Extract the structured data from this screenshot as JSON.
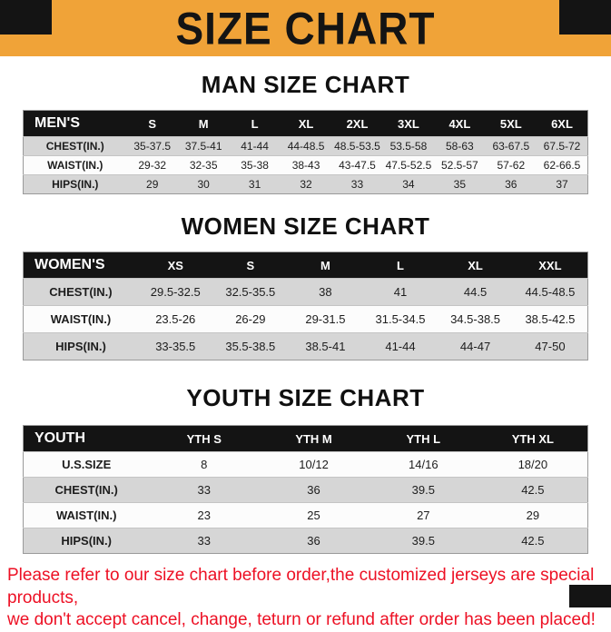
{
  "banner": {
    "title": "SIZE CHART"
  },
  "colors": {
    "banner_bg": "#F0A338",
    "table_header_bg": "#141414",
    "shaded_row_bg": "#D6D6D6",
    "notice_text": "#ED1024"
  },
  "chart_data": [
    {
      "type": "table",
      "title": "MAN SIZE CHART",
      "shade_first_row": true,
      "header": [
        "MEN'S",
        "S",
        "M",
        "L",
        "XL",
        "2XL",
        "3XL",
        "4XL",
        "5XL",
        "6XL"
      ],
      "rows": [
        [
          "CHEST(IN.)",
          "35-37.5",
          "37.5-41",
          "41-44",
          "44-48.5",
          "48.5-53.5",
          "53.5-58",
          "58-63",
          "63-67.5",
          "67.5-72"
        ],
        [
          "WAIST(IN.)",
          "29-32",
          "32-35",
          "35-38",
          "38-43",
          "43-47.5",
          "47.5-52.5",
          "52.5-57",
          "57-62",
          "62-66.5"
        ],
        [
          "HIPS(IN.)",
          "29",
          "30",
          "31",
          "32",
          "33",
          "34",
          "35",
          "36",
          "37"
        ]
      ]
    },
    {
      "type": "table",
      "title": "WOMEN SIZE CHART",
      "shade_first_row": true,
      "header": [
        "WOMEN'S",
        "XS",
        "S",
        "M",
        "L",
        "XL",
        "XXL"
      ],
      "rows": [
        [
          "CHEST(IN.)",
          "29.5-32.5",
          "32.5-35.5",
          "38",
          "41",
          "44.5",
          "44.5-48.5"
        ],
        [
          "WAIST(IN.)",
          "23.5-26",
          "26-29",
          "29-31.5",
          "31.5-34.5",
          "34.5-38.5",
          "38.5-42.5"
        ],
        [
          "HIPS(IN.)",
          "33-35.5",
          "35.5-38.5",
          "38.5-41",
          "41-44",
          "44-47",
          "47-50"
        ]
      ]
    },
    {
      "type": "table",
      "title": "YOUTH SIZE CHART",
      "shade_first_row": false,
      "header": [
        "YOUTH",
        "YTH S",
        "YTH M",
        "YTH L",
        "YTH XL"
      ],
      "rows": [
        [
          "U.S.SIZE",
          "8",
          "10/12",
          "14/16",
          "18/20"
        ],
        [
          "CHEST(IN.)",
          "33",
          "36",
          "39.5",
          "42.5"
        ],
        [
          "WAIST(IN.)",
          "23",
          "25",
          "27",
          "29"
        ],
        [
          "HIPS(IN.)",
          "33",
          "36",
          "39.5",
          "42.5"
        ]
      ]
    }
  ],
  "footer": {
    "line1": "Please refer to our size chart before order,the customized jerseys are special products,",
    "line2": "we don't accept cancel, change, teturn or refund after order has been placed!"
  }
}
